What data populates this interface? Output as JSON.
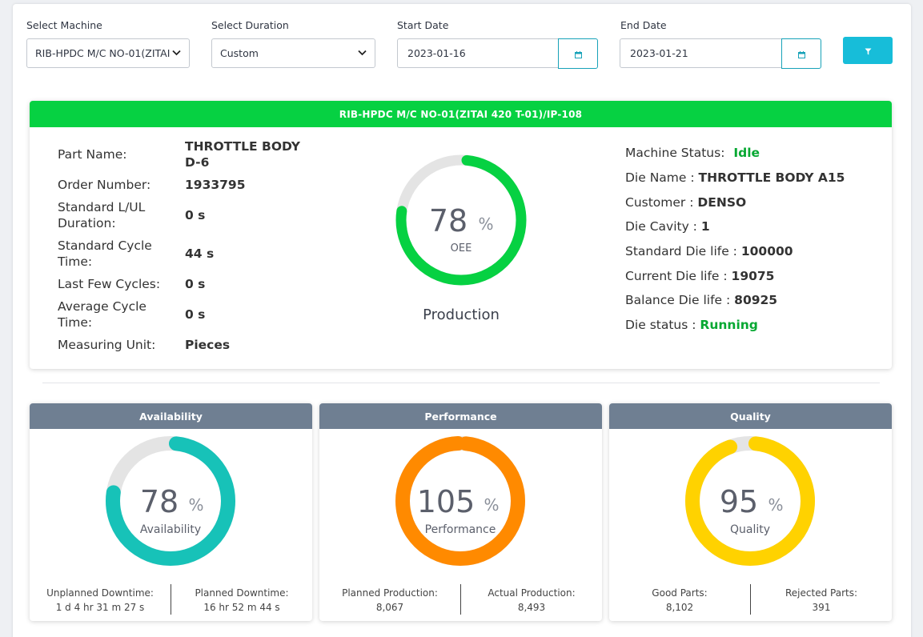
{
  "filters": {
    "machine_label": "Select Machine",
    "machine_value": "RIB-HPDC M/C NO-01(ZITAI",
    "duration_label": "Select Duration",
    "duration_value": "Custom",
    "start_label": "Start Date",
    "start_value": "2023-01-16",
    "end_label": "End Date",
    "end_value": "2023-01-21"
  },
  "machine_card": {
    "title": "RIB-HPDC M/C NO-01(ZITAI 420 T-01)/IP-108",
    "part_name_label": "Part Name:",
    "part_name_line1": "THROTTLE BODY",
    "part_name_line2": "D-6",
    "order_number_label": "Order Number:",
    "order_number": "1933795",
    "std_lul_label_1": "Standard L/UL",
    "std_lul_label_2": "Duration:",
    "std_lul": "0 s",
    "std_cycle_label_1": "Standard Cycle",
    "std_cycle_label_2": "Time:",
    "std_cycle": "44 s",
    "last_cycles_label": "Last Few Cycles:",
    "last_cycles": "0 s",
    "avg_cycle_label_1": "Average Cycle",
    "avg_cycle_label_2": "Time:",
    "avg_cycle": "0 s",
    "unit_label": "Measuring Unit:",
    "unit": "Pieces",
    "oee_value": "78",
    "oee_pct": 78,
    "percent_sign": "%",
    "oee_label": "OEE",
    "production_label": "Production",
    "machine_status_label": "Machine Status:",
    "machine_status": "Idle",
    "die_name_label": "Die Name :",
    "die_name": "THROTTLE BODY A15",
    "customer_label": "Customer :",
    "customer": "DENSO",
    "die_cavity_label": "Die Cavity :",
    "die_cavity": "1",
    "std_die_life_label": "Standard Die life :",
    "std_die_life": "100000",
    "current_die_life_label": "Current Die life :",
    "current_die_life": "19075",
    "balance_die_life_label": "Balance Die life :",
    "balance_die_life": "80925",
    "die_status_label": "Die status :",
    "die_status": "Running"
  },
  "availability": {
    "title": "Availability",
    "value": "78",
    "pct": 78,
    "label": "Availability",
    "left_label": "Unplanned Downtime:",
    "left_value": "1 d 4 hr 31 m 27 s",
    "right_label": "Planned Downtime:",
    "right_value": "16 hr 52 m 44 s"
  },
  "performance": {
    "title": "Performance",
    "value": "105",
    "pct": 105,
    "label": "Performance",
    "left_label": "Planned Production:",
    "left_value": "8,067",
    "right_label": "Actual Production:",
    "right_value": "8,493"
  },
  "quality": {
    "title": "Quality",
    "value": "95",
    "pct": 95,
    "label": "Quality",
    "left_label": "Good Parts:",
    "left_value": "8,102",
    "right_label": "Rejected Parts:",
    "right_value": "391"
  },
  "colors": {
    "oee": "#06d142",
    "availability": "#17c2b8",
    "performance": "#ff8a00",
    "quality": "#ffd200",
    "track": "#e4e4e4",
    "header_green": "#06d142",
    "header_gray": "#6f7f92",
    "accent": "#17bdd9"
  },
  "icons": {
    "calendar": "calendar-icon",
    "filter": "filter-icon",
    "dropdown": "chevron-down-icon"
  }
}
